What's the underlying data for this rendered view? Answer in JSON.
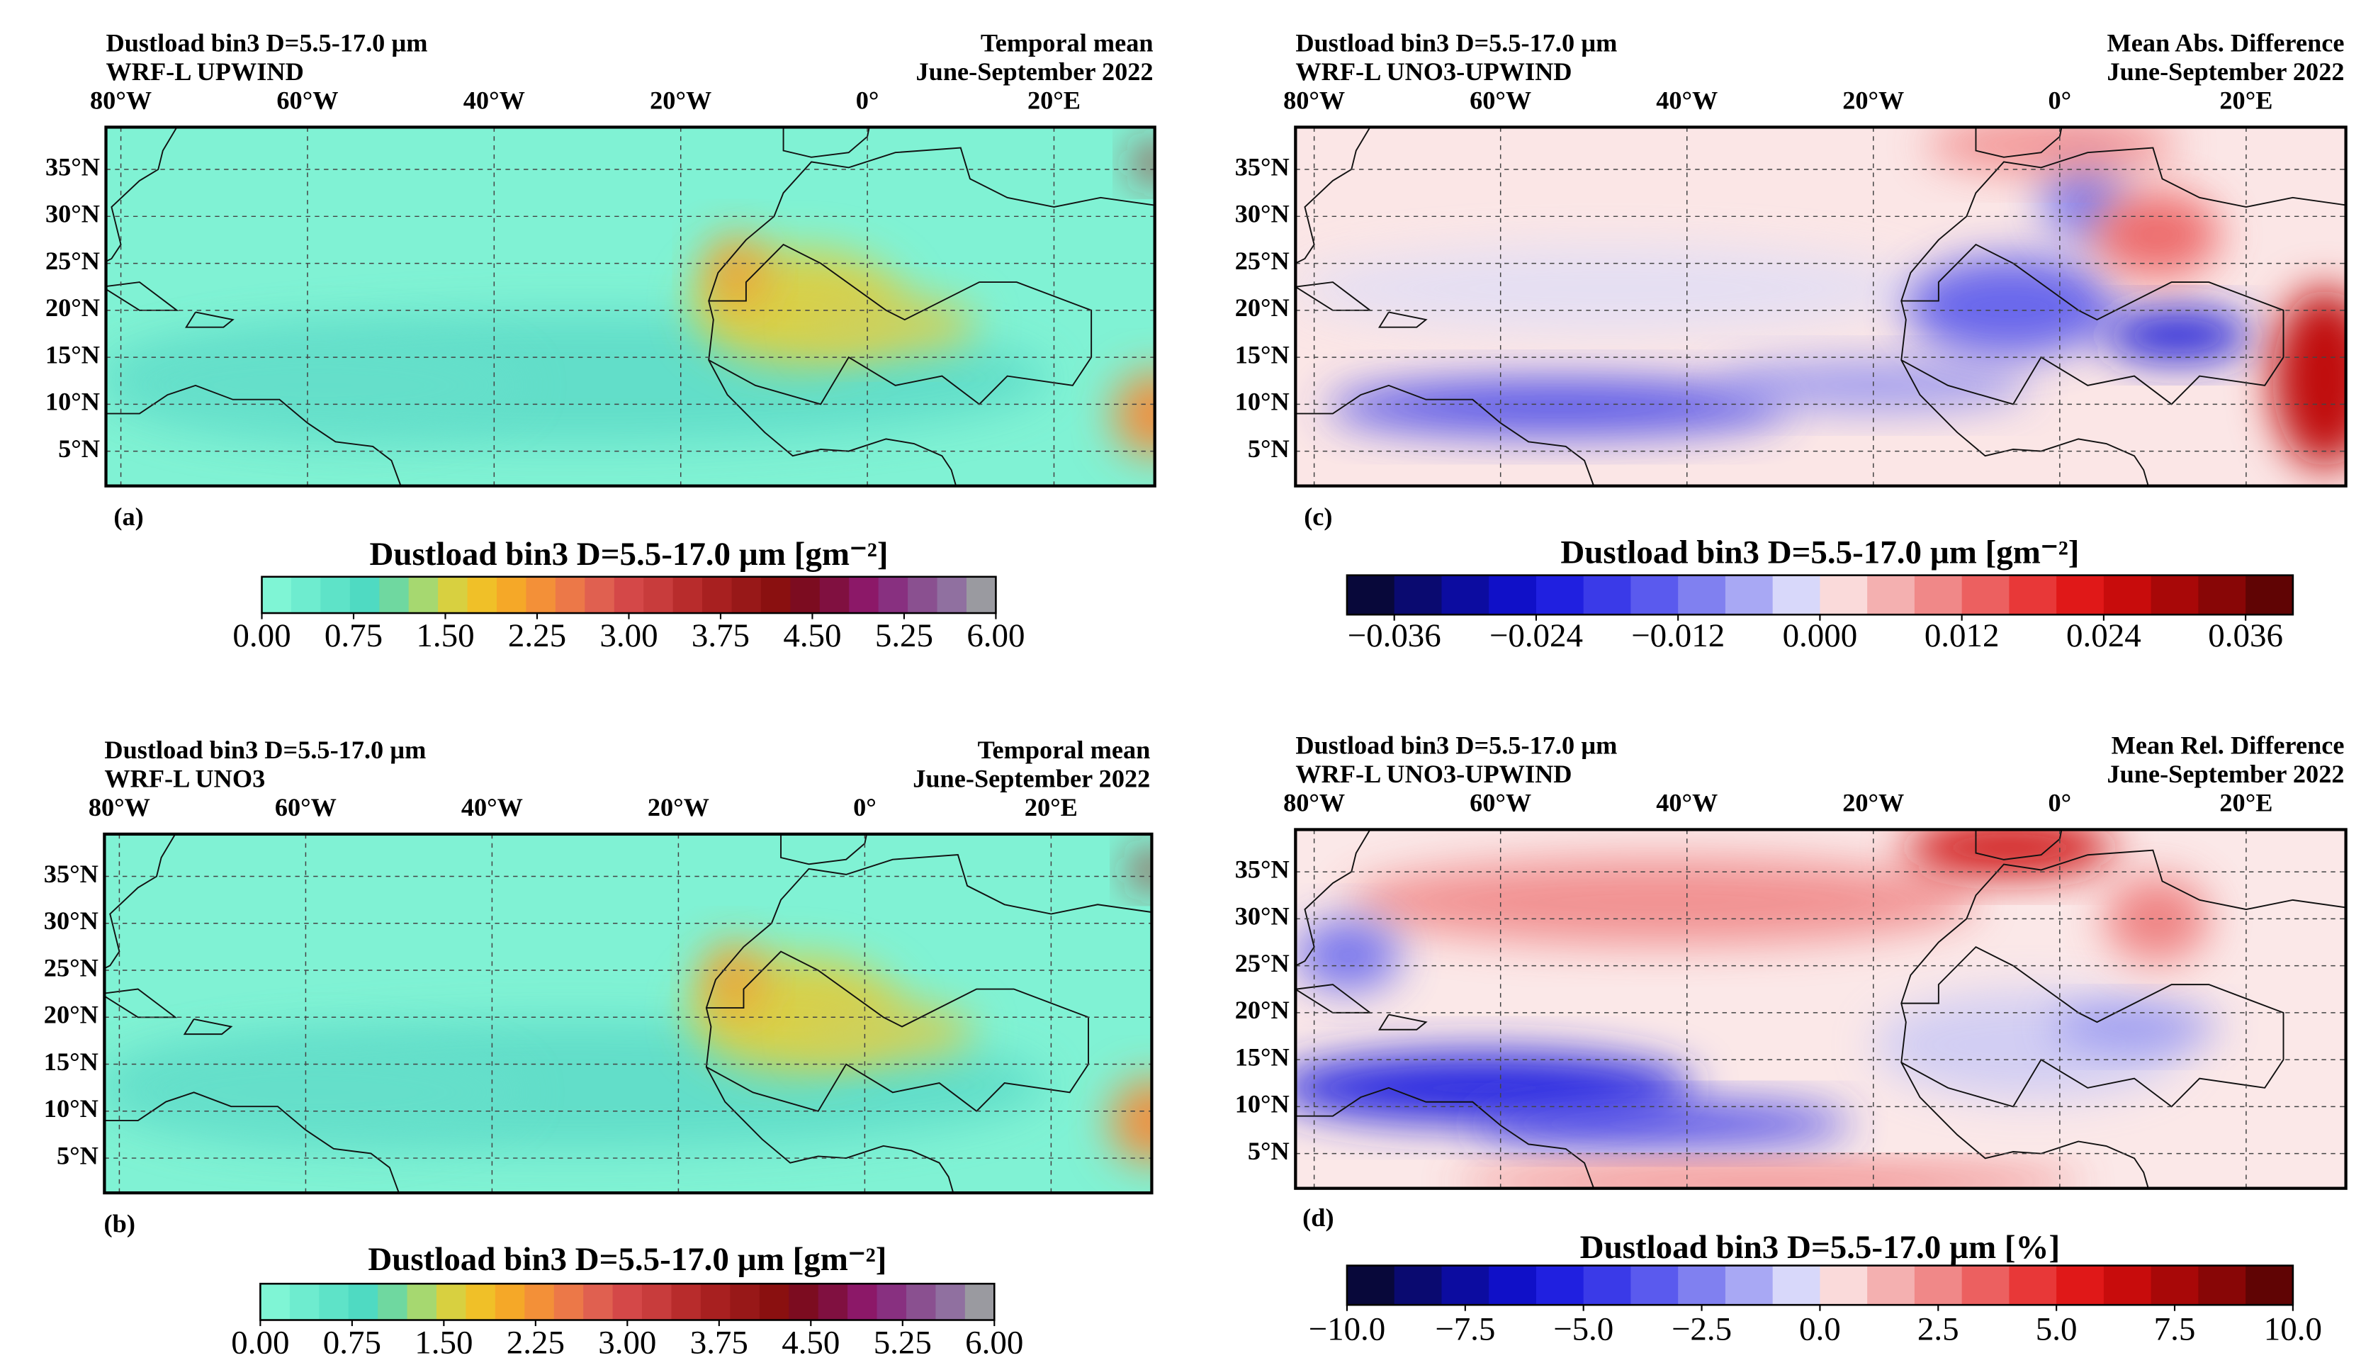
{
  "chart_data": [
    {
      "type": "map",
      "title": "Dustload bin3 D=5.5-17.0 µm",
      "subtitle": "WRF-L UPWIND",
      "annotations": [
        "Temporal mean",
        "June-September 2022"
      ],
      "panel_label": "(a)",
      "xlim": [
        -81.6,
        30.8
      ],
      "ylim": [
        1.3,
        39.5
      ],
      "xticks": [
        {
          "value": -80,
          "label": "80°W"
        },
        {
          "value": -60,
          "label": "60°W"
        },
        {
          "value": -40,
          "label": "40°W"
        },
        {
          "value": -20,
          "label": "20°W"
        },
        {
          "value": 0,
          "label": "0°"
        },
        {
          "value": 20,
          "label": "20°E"
        }
      ],
      "yticks": [
        {
          "value": 35,
          "label": "35°N"
        },
        {
          "value": 30,
          "label": "30°N"
        },
        {
          "value": 25,
          "label": "25°N"
        },
        {
          "value": 20,
          "label": "20°N"
        },
        {
          "value": 15,
          "label": "15°N"
        },
        {
          "value": 10,
          "label": "10°N"
        },
        {
          "value": 5,
          "label": "5°N"
        }
      ],
      "grid": true,
      "colorbar": {
        "title": "Dustload bin3 D=5.5-17.0 µm [gm⁻²]",
        "lim": [
          0,
          6
        ],
        "ticks": [
          {
            "value": 0,
            "label": "0.00"
          },
          {
            "value": 0.75,
            "label": "0.75"
          },
          {
            "value": 1.5,
            "label": "1.50"
          },
          {
            "value": 2.25,
            "label": "2.25"
          },
          {
            "value": 3,
            "label": "3.00"
          },
          {
            "value": 3.75,
            "label": "3.75"
          },
          {
            "value": 4.5,
            "label": "4.50"
          },
          {
            "value": 5.25,
            "label": "5.25"
          },
          {
            "value": 6,
            "label": "6.00"
          }
        ],
        "colors": [
          "#7ff5d5",
          "#6eeccf",
          "#5ee3c8",
          "#4fdac2",
          "#6fd8a0",
          "#a6d870",
          "#d8d040",
          "#f0c028",
          "#f5a828",
          "#f39038",
          "#ec7848",
          "#e06050",
          "#d44848",
          "#c83c3c",
          "#b82c2c",
          "#a82020",
          "#981818",
          "#8a1010",
          "#7c0c20",
          "#801040",
          "#8c1868",
          "#883080",
          "#8a5090",
          "#9070a0",
          "#9a9aa0"
        ]
      }
    },
    {
      "type": "map",
      "title": "Dustload bin3 D=5.5-17.0 µm",
      "subtitle": "WRF-L UNO3",
      "annotations": [
        "Temporal mean",
        "June-September 2022"
      ],
      "panel_label": "(b)",
      "xlim": [
        -81.6,
        30.8
      ],
      "ylim": [
        1.3,
        39.5
      ],
      "xticks": [
        {
          "value": -80,
          "label": "80°W"
        },
        {
          "value": -60,
          "label": "60°W"
        },
        {
          "value": -40,
          "label": "40°W"
        },
        {
          "value": -20,
          "label": "20°W"
        },
        {
          "value": 0,
          "label": "0°"
        },
        {
          "value": 20,
          "label": "20°E"
        }
      ],
      "yticks": [
        {
          "value": 35,
          "label": "35°N"
        },
        {
          "value": 30,
          "label": "30°N"
        },
        {
          "value": 25,
          "label": "25°N"
        },
        {
          "value": 20,
          "label": "20°N"
        },
        {
          "value": 15,
          "label": "15°N"
        },
        {
          "value": 10,
          "label": "10°N"
        },
        {
          "value": 5,
          "label": "5°N"
        }
      ],
      "grid": true,
      "colorbar": {
        "title": "Dustload bin3 D=5.5-17.0 µm [gm⁻²]",
        "lim": [
          0,
          6
        ],
        "ticks": [
          {
            "value": 0,
            "label": "0.00"
          },
          {
            "value": 0.75,
            "label": "0.75"
          },
          {
            "value": 1.5,
            "label": "1.50"
          },
          {
            "value": 2.25,
            "label": "2.25"
          },
          {
            "value": 3,
            "label": "3.00"
          },
          {
            "value": 3.75,
            "label": "3.75"
          },
          {
            "value": 4.5,
            "label": "4.50"
          },
          {
            "value": 5.25,
            "label": "5.25"
          },
          {
            "value": 6,
            "label": "6.00"
          }
        ],
        "colors": [
          "#7ff5d5",
          "#6eeccf",
          "#5ee3c8",
          "#4fdac2",
          "#6fd8a0",
          "#a6d870",
          "#d8d040",
          "#f0c028",
          "#f5a828",
          "#f39038",
          "#ec7848",
          "#e06050",
          "#d44848",
          "#c83c3c",
          "#b82c2c",
          "#a82020",
          "#981818",
          "#8a1010",
          "#7c0c20",
          "#801040",
          "#8c1868",
          "#883080",
          "#8a5090",
          "#9070a0",
          "#9a9aa0"
        ]
      }
    },
    {
      "type": "map",
      "title": "Dustload bin3 D=5.5-17.0 µm",
      "subtitle": "WRF-L UNO3-UPWIND",
      "annotations": [
        "Mean Abs. Difference",
        "June-September 2022"
      ],
      "panel_label": "(c)",
      "xlim": [
        -82,
        30.7
      ],
      "ylim": [
        1.3,
        39.5
      ],
      "xticks": [
        {
          "value": -80,
          "label": "80°W"
        },
        {
          "value": -60,
          "label": "60°W"
        },
        {
          "value": -40,
          "label": "40°W"
        },
        {
          "value": -20,
          "label": "20°W"
        },
        {
          "value": 0,
          "label": "0°"
        },
        {
          "value": 20,
          "label": "20°E"
        }
      ],
      "yticks": [
        {
          "value": 35,
          "label": "35°N"
        },
        {
          "value": 30,
          "label": "30°N"
        },
        {
          "value": 25,
          "label": "25°N"
        },
        {
          "value": 20,
          "label": "20°N"
        },
        {
          "value": 15,
          "label": "15°N"
        },
        {
          "value": 10,
          "label": "10°N"
        },
        {
          "value": 5,
          "label": "5°N"
        }
      ],
      "grid": true,
      "colorbar": {
        "title": "Dustload bin3 D=5.5-17.0 µm [gm⁻²]",
        "lim": [
          -0.04,
          0.04
        ],
        "ticks": [
          {
            "value": -0.036,
            "label": "−0.036"
          },
          {
            "value": -0.024,
            "label": "−0.024"
          },
          {
            "value": -0.012,
            "label": "−0.012"
          },
          {
            "value": 0,
            "label": "0.000"
          },
          {
            "value": 0.012,
            "label": "0.012"
          },
          {
            "value": 0.024,
            "label": "0.024"
          },
          {
            "value": 0.036,
            "label": "0.036"
          }
        ],
        "colors": [
          "#08083a",
          "#0a0a70",
          "#0c0ca0",
          "#1010c8",
          "#2020e0",
          "#3a3ae8",
          "#5a5aee",
          "#8080f0",
          "#a8a8f4",
          "#d8d8fa",
          "#fadada",
          "#f4b0b0",
          "#f08888",
          "#ec6060",
          "#e83838",
          "#e01818",
          "#c80c0c",
          "#a80808",
          "#880606",
          "#600404"
        ]
      }
    },
    {
      "type": "map",
      "title": "Dustload bin3 D=5.5-17.0 µm",
      "subtitle": "WRF-L UNO3-UPWIND",
      "annotations": [
        "Mean Rel. Difference",
        "June-September 2022"
      ],
      "panel_label": "(d)",
      "xlim": [
        -82,
        30.7
      ],
      "ylim": [
        1.3,
        39.5
      ],
      "xticks": [
        {
          "value": -80,
          "label": "80°W"
        },
        {
          "value": -60,
          "label": "60°W"
        },
        {
          "value": -40,
          "label": "40°W"
        },
        {
          "value": -20,
          "label": "20°W"
        },
        {
          "value": 0,
          "label": "0°"
        },
        {
          "value": 20,
          "label": "20°E"
        }
      ],
      "yticks": [
        {
          "value": 35,
          "label": "35°N"
        },
        {
          "value": 30,
          "label": "30°N"
        },
        {
          "value": 25,
          "label": "25°N"
        },
        {
          "value": 20,
          "label": "20°N"
        },
        {
          "value": 15,
          "label": "15°N"
        },
        {
          "value": 10,
          "label": "10°N"
        },
        {
          "value": 5,
          "label": "5°N"
        }
      ],
      "grid": true,
      "colorbar": {
        "title": "Dustload bin3 D=5.5-17.0 µm [%]",
        "lim": [
          -10,
          10
        ],
        "ticks": [
          {
            "value": -10,
            "label": "−10.0"
          },
          {
            "value": -7.5,
            "label": "−7.5"
          },
          {
            "value": -5,
            "label": "−5.0"
          },
          {
            "value": -2.5,
            "label": "−2.5"
          },
          {
            "value": 0,
            "label": "0.0"
          },
          {
            "value": 2.5,
            "label": "2.5"
          },
          {
            "value": 5,
            "label": "5.0"
          },
          {
            "value": 7.5,
            "label": "7.5"
          },
          {
            "value": 10,
            "label": "10.0"
          }
        ],
        "colors": [
          "#08083a",
          "#0a0a70",
          "#0c0ca0",
          "#1010c8",
          "#2020e0",
          "#3a3ae8",
          "#5a5aee",
          "#8080f0",
          "#a8a8f4",
          "#d8d8fa",
          "#fadada",
          "#f4b0b0",
          "#f08888",
          "#ec6060",
          "#e83838",
          "#e01818",
          "#c80c0c",
          "#a80808",
          "#880606",
          "#600404"
        ]
      }
    }
  ]
}
